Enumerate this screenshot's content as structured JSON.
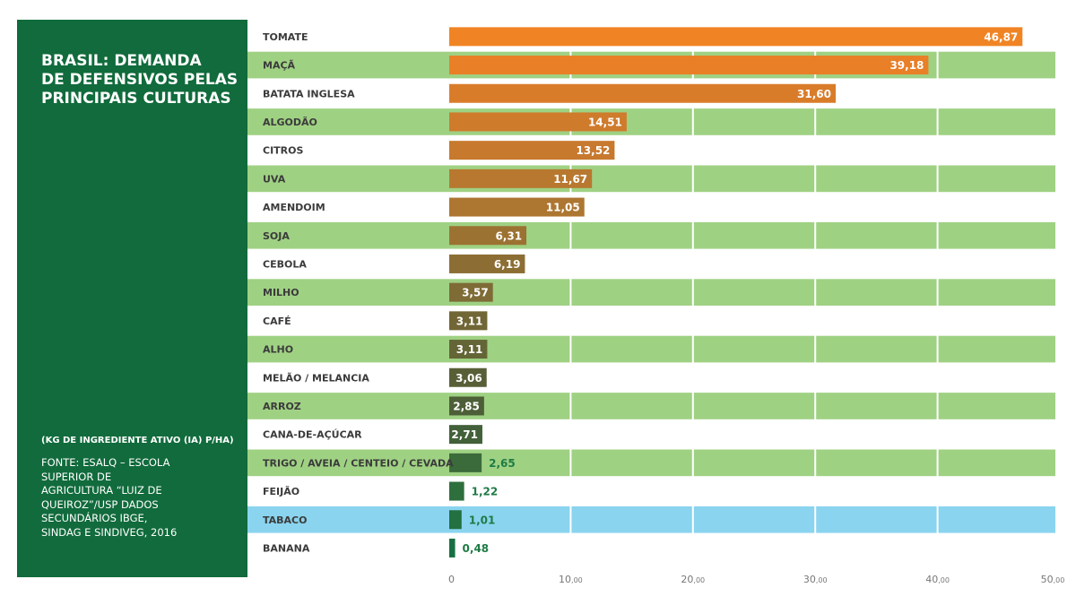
{
  "sidebar": {
    "title": "BRASIL: DEMANDA\nDE DEFENSIVOS PELAS\nPRINCIPAIS CULTURAS",
    "units": "(KG DE INGREDIENTE ATIVO (IA) P/HA)",
    "source": "FONTE: ESALQ – ESCOLA\nSUPERIOR DE\nAGRICULTURA “LUIZ DE\nQUEIROZ”/USP DADOS\nSECUNDÁRIOS IBGE,\nSINDAG E SINDIVEG, 2016"
  },
  "colors": {
    "sidebar_bg": "#116b3c",
    "band_green": "#9fd183",
    "band_blue": "#8ad4ef",
    "label_green": "#1e7b45"
  },
  "chart_data": {
    "type": "bar",
    "orientation": "horizontal",
    "title": "BRASIL: DEMANDA DE DEFENSIVOS PELAS PRINCIPAIS CULTURAS",
    "xlabel": "(KG DE INGREDIENTE ATIVO (IA) P/HA)",
    "xlim": [
      0,
      50
    ],
    "grid": true,
    "xticks": [
      {
        "value": 0,
        "label": "0",
        "suffix": ""
      },
      {
        "value": 10,
        "label": "10",
        "suffix": ",00"
      },
      {
        "value": 20,
        "label": "20",
        "suffix": ",00"
      },
      {
        "value": 30,
        "label": "30",
        "suffix": ",00"
      },
      {
        "value": 40,
        "label": "40",
        "suffix": ",00"
      },
      {
        "value": 50,
        "label": "50",
        "suffix": ",00"
      }
    ],
    "categories": [
      "TOMATE",
      "MAÇÃ",
      "BATATA INGLESA",
      "ALGODÃO",
      "CITROS",
      "UVA",
      "AMENDOIM",
      "SOJA",
      "CEBOLA",
      "MILHO",
      "CAFÉ",
      "ALHO",
      "MELÃO / MELANCIA",
      "ARROZ",
      "CANA-DE-AÇÚCAR",
      "TRIGO / AVEIA / CENTEIO / CEVADA",
      "FEIJÃO",
      "TABACO",
      "BANANA"
    ],
    "values": [
      46.87,
      39.18,
      31.6,
      14.51,
      13.52,
      11.67,
      11.05,
      6.31,
      6.19,
      3.57,
      3.11,
      3.11,
      3.06,
      2.85,
      2.71,
      2.65,
      1.22,
      1.01,
      0.48
    ],
    "value_labels": [
      "46,87",
      "39,18",
      "31,60",
      "14,51",
      "13,52",
      "11,67",
      "11,05",
      "6,31",
      "6,19",
      "3,57",
      "3,11",
      "3,11",
      "3,06",
      "2,85",
      "2,71",
      "2,65",
      "1,22",
      "1,01",
      "0,48"
    ],
    "bar_colors": [
      "#f08424",
      "#e97f26",
      "#d97c2a",
      "#cf7b2c",
      "#c7792e",
      "#b8782f",
      "#ad7631",
      "#9c7232",
      "#8c6e34",
      "#7e6b35",
      "#716635",
      "#646536",
      "#585f37",
      "#4d5f38",
      "#426039",
      "#3b6a3b",
      "#2e6f3d",
      "#237040",
      "#177043"
    ],
    "row_bands": [
      "none",
      "green",
      "none",
      "green",
      "none",
      "green",
      "none",
      "green",
      "none",
      "green",
      "none",
      "green",
      "none",
      "green",
      "none",
      "green",
      "none",
      "blue",
      "none"
    ],
    "label_inside": [
      true,
      true,
      true,
      true,
      true,
      true,
      true,
      true,
      true,
      true,
      true,
      true,
      true,
      true,
      true,
      false,
      false,
      false,
      false
    ]
  }
}
